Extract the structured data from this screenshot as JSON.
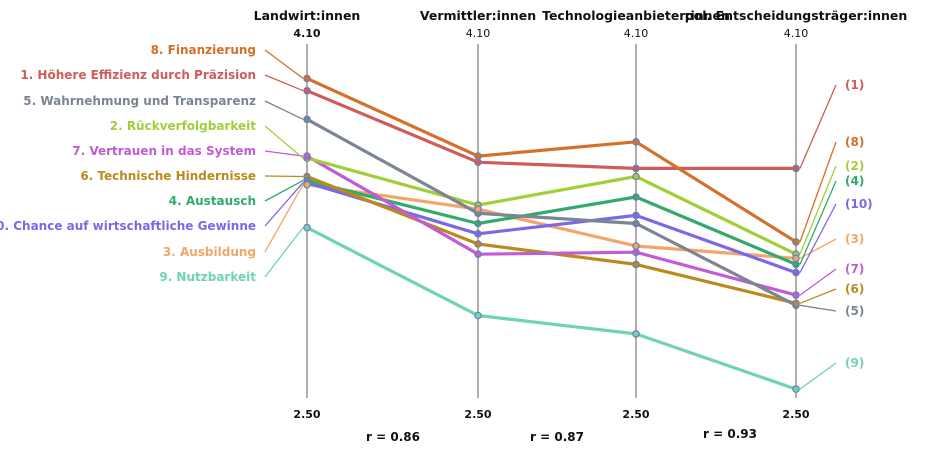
{
  "chart_data": {
    "type": "line",
    "chart_style": "parallel coordinates",
    "axes": [
      {
        "name": "Landwirt:innen",
        "max_label": "4.10",
        "min_label": "2.50"
      },
      {
        "name": "Vermittler:innen",
        "max_label": "4.10",
        "min_label": "2.50"
      },
      {
        "name": "Technologieanbieter:innen",
        "max_label": "4.10",
        "min_label": "2.50"
      },
      {
        "name": "pol. Entscheidungsträger:innen",
        "max_label": "4.10",
        "min_label": "2.50"
      }
    ],
    "ylim": [
      2.5,
      4.1
    ],
    "series": [
      {
        "name": "8. Finanzierung",
        "end_label": "(8)",
        "color": "#d4702a",
        "values": [
          4.0,
          3.62,
          3.69,
          3.2
        ]
      },
      {
        "name": "1. Höhere Effizienz durch Präzision",
        "end_label": "(1)",
        "color": "#cf5b5b",
        "values": [
          3.94,
          3.59,
          3.56,
          3.56
        ]
      },
      {
        "name": "5. Wahrnehmung und Transparenz",
        "end_label": "(5)",
        "color": "#7b8594",
        "values": [
          3.8,
          3.34,
          3.29,
          2.89
        ]
      },
      {
        "name": "2. Rückverfolgbarkeit",
        "end_label": "(2)",
        "color": "#a1cf3a",
        "values": [
          3.61,
          3.38,
          3.52,
          3.14
        ]
      },
      {
        "name": "7. Vertrauen in das System",
        "end_label": "(7)",
        "color": "#c15cd2",
        "values": [
          3.62,
          3.14,
          3.15,
          2.94
        ]
      },
      {
        "name": "6. Technische Hindernisse",
        "end_label": "(6)",
        "color": "#bc8a1c",
        "values": [
          3.52,
          3.19,
          3.09,
          2.9
        ]
      },
      {
        "name": "4. Austausch",
        "end_label": "(4)",
        "color": "#33aa6c",
        "values": [
          3.5,
          3.29,
          3.42,
          3.09
        ]
      },
      {
        "name": "10. Chance auf wirtschaftliche Gewinne",
        "end_label": "(10)",
        "color": "#7b68e6",
        "values": [
          3.49,
          3.24,
          3.33,
          3.05
        ]
      },
      {
        "name": "3. Ausbildung",
        "end_label": "(3)",
        "color": "#f4a56a",
        "values": [
          3.48,
          3.36,
          3.18,
          3.12
        ]
      },
      {
        "name": "9. Nutzbarkeit",
        "end_label": "(9)",
        "color": "#6fd3b4",
        "values": [
          3.27,
          2.84,
          2.75,
          2.48
        ]
      }
    ],
    "correlations": [
      "r = 0.86",
      "r = 0.87",
      "r = 0.93"
    ],
    "grid": false,
    "legend": "left"
  }
}
